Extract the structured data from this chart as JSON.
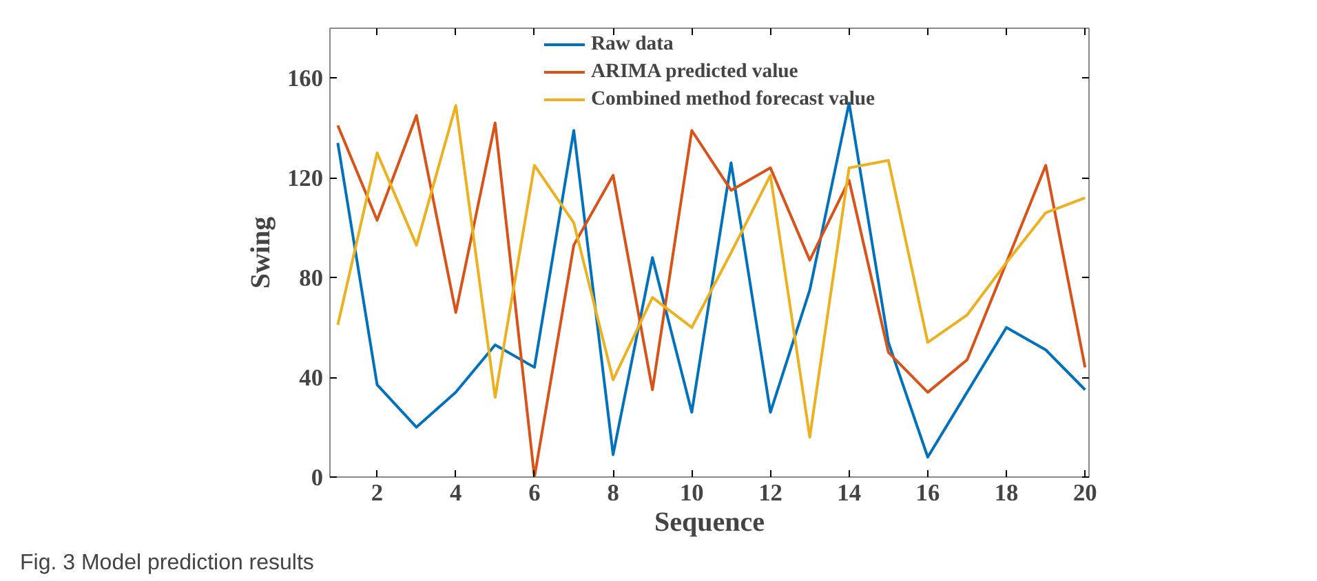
{
  "chart_data": {
    "type": "line",
    "xlabel": "Sequence",
    "ylabel": "Swing",
    "x": [
      1,
      2,
      3,
      4,
      5,
      6,
      7,
      8,
      9,
      10,
      11,
      12,
      13,
      14,
      15,
      16,
      17,
      18,
      19,
      20
    ],
    "xlim": [
      0.8,
      20.1
    ],
    "ylim": [
      0,
      180
    ],
    "xticks": [
      2,
      4,
      6,
      8,
      10,
      12,
      14,
      16,
      18,
      20
    ],
    "yticks": [
      0,
      40,
      80,
      120,
      160
    ],
    "series": [
      {
        "name": "Raw data",
        "color": "#0072bd",
        "values": [
          134,
          37,
          20,
          34,
          53,
          44,
          139,
          9,
          88,
          26,
          126,
          26,
          75,
          150,
          54,
          8,
          34,
          60,
          51,
          35
        ]
      },
      {
        "name": "ARIMA predicted value",
        "color": "#d95319",
        "values": [
          141,
          103,
          145,
          66,
          142,
          0,
          93,
          121,
          35,
          139,
          115,
          124,
          87,
          119,
          50,
          34,
          47,
          86,
          125,
          44
        ]
      },
      {
        "name": "Combined method forecast value",
        "color": "#edb120",
        "values": [
          61,
          130,
          93,
          149,
          32,
          125,
          102,
          39,
          72,
          60,
          90,
          121,
          16,
          124,
          127,
          54,
          65,
          86,
          106,
          112
        ]
      }
    ],
    "legend": "top",
    "grid": false,
    "marker": "none",
    "line_style": "solid",
    "annotations": [
      "Fig. 3 Model prediction results"
    ]
  }
}
